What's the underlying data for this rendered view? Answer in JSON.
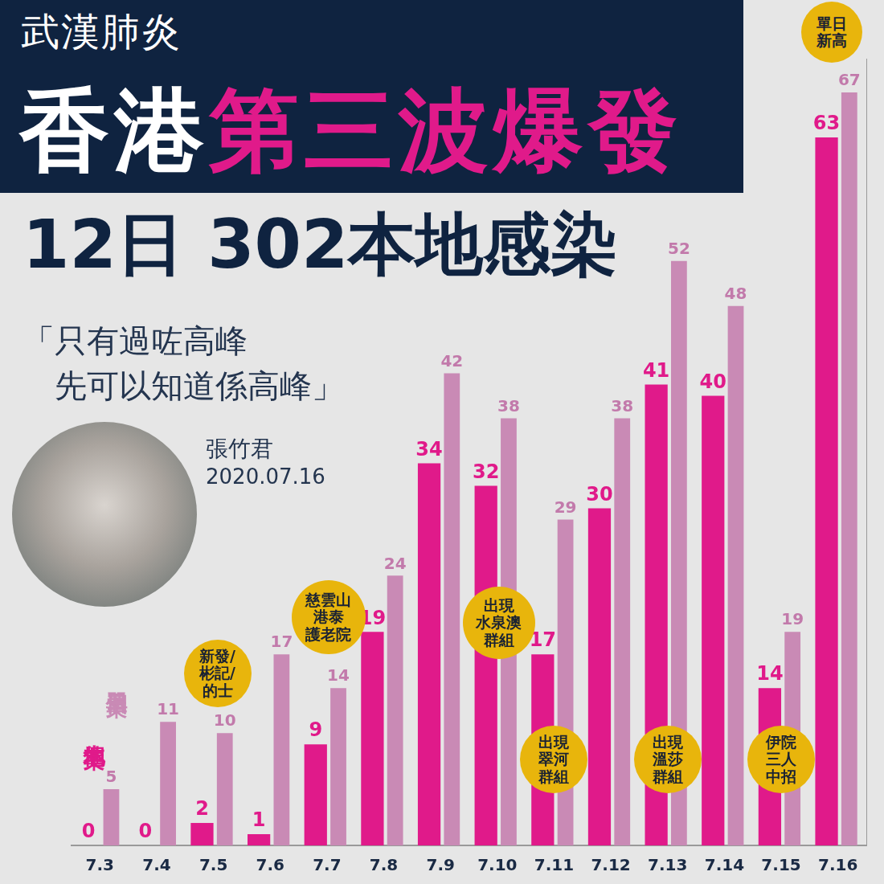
{
  "header": {
    "label": "武漢肺炎",
    "title": [
      "香港",
      "第三波爆發"
    ]
  },
  "headline": "12日 302本地感染",
  "quote": "「只有過咗高峰\n先可以知道係高峰」",
  "speaker": "張竹君",
  "date": "2020.07.16",
  "chart_data": {
    "type": "bar",
    "categories": [
      "7.3",
      "7.4",
      "7.5",
      "7.6",
      "7.7",
      "7.8",
      "7.9",
      "7.10",
      "7.11",
      "7.12",
      "7.13",
      "7.14",
      "7.15",
      "7.16"
    ],
    "series": [
      {
        "name": "本地個案",
        "color": "#e01a8a",
        "values": [
          0,
          0,
          2,
          1,
          9,
          19,
          34,
          32,
          17,
          30,
          41,
          40,
          14,
          63
        ]
      },
      {
        "name": "單日個案",
        "color": "#c98ab5",
        "values": [
          5,
          11,
          10,
          17,
          14,
          24,
          42,
          38,
          29,
          38,
          52,
          48,
          19,
          67
        ]
      }
    ],
    "ylim": [
      0,
      70
    ],
    "grid": false,
    "data_labels": true,
    "tick_labels": "x",
    "annotations": [
      {
        "category": "7.16",
        "text": "單日\n新高"
      },
      {
        "category": "7.5",
        "text": "新發/\n彬記/\n的士"
      },
      {
        "category": "7.7",
        "text": "慈雲山\n港泰\n護老院"
      },
      {
        "category": "7.10",
        "text": "出現\n水泉澳\n群組"
      },
      {
        "category": "7.11",
        "text": "出現\n翠河\n群組"
      },
      {
        "category": "7.13",
        "text": "出現\n溫莎\n群組"
      },
      {
        "category": "7.15",
        "text": "伊院\n三人\n中招"
      }
    ]
  }
}
